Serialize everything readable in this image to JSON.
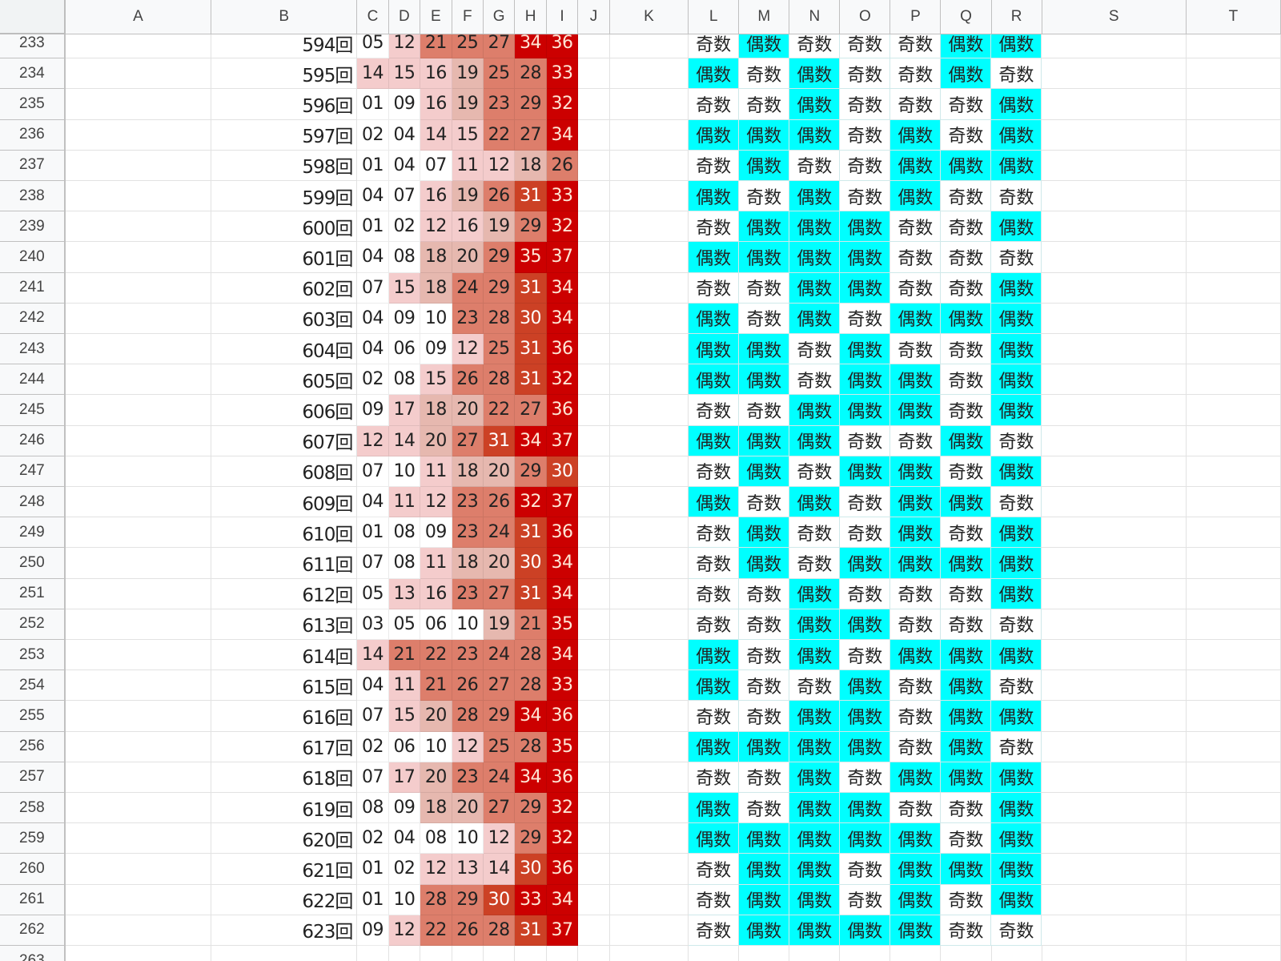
{
  "columns": [
    "",
    "A",
    "B",
    "C",
    "D",
    "E",
    "F",
    "G",
    "H",
    "I",
    "J",
    "K",
    "L",
    "M",
    "N",
    "O",
    "P",
    "Q",
    "R",
    "S",
    "T"
  ],
  "parity_labels": {
    "odd": "奇数",
    "even": "偶数"
  },
  "colors": {
    "even_fill": "#00ffff",
    "odd_fill": "#ffffff",
    "scale": [
      "#ffffff",
      "#f4cccc",
      "#e6b8af",
      "#dd7e6b",
      "#cc4125",
      "#cc0000"
    ]
  },
  "rows": [
    {
      "row": "233",
      "draw": "594回",
      "nums": [
        "05",
        "12",
        "21",
        "25",
        "27",
        "34",
        "36"
      ]
    },
    {
      "row": "234",
      "draw": "595回",
      "nums": [
        "14",
        "15",
        "16",
        "19",
        "25",
        "28",
        "33"
      ]
    },
    {
      "row": "235",
      "draw": "596回",
      "nums": [
        "01",
        "09",
        "16",
        "19",
        "23",
        "29",
        "32"
      ]
    },
    {
      "row": "236",
      "draw": "597回",
      "nums": [
        "02",
        "04",
        "14",
        "15",
        "22",
        "27",
        "34"
      ]
    },
    {
      "row": "237",
      "draw": "598回",
      "nums": [
        "01",
        "04",
        "07",
        "11",
        "12",
        "18",
        "26"
      ]
    },
    {
      "row": "238",
      "draw": "599回",
      "nums": [
        "04",
        "07",
        "16",
        "19",
        "26",
        "31",
        "33"
      ]
    },
    {
      "row": "239",
      "draw": "600回",
      "nums": [
        "01",
        "02",
        "12",
        "16",
        "19",
        "29",
        "32"
      ]
    },
    {
      "row": "240",
      "draw": "601回",
      "nums": [
        "04",
        "08",
        "18",
        "20",
        "29",
        "35",
        "37"
      ]
    },
    {
      "row": "241",
      "draw": "602回",
      "nums": [
        "07",
        "15",
        "18",
        "24",
        "29",
        "31",
        "34"
      ]
    },
    {
      "row": "242",
      "draw": "603回",
      "nums": [
        "04",
        "09",
        "10",
        "23",
        "28",
        "30",
        "34"
      ]
    },
    {
      "row": "243",
      "draw": "604回",
      "nums": [
        "04",
        "06",
        "09",
        "12",
        "25",
        "31",
        "36"
      ]
    },
    {
      "row": "244",
      "draw": "605回",
      "nums": [
        "02",
        "08",
        "15",
        "26",
        "28",
        "31",
        "32"
      ]
    },
    {
      "row": "245",
      "draw": "606回",
      "nums": [
        "09",
        "17",
        "18",
        "20",
        "22",
        "27",
        "36"
      ]
    },
    {
      "row": "246",
      "draw": "607回",
      "nums": [
        "12",
        "14",
        "20",
        "27",
        "31",
        "34",
        "37"
      ]
    },
    {
      "row": "247",
      "draw": "608回",
      "nums": [
        "07",
        "10",
        "11",
        "18",
        "20",
        "29",
        "30"
      ]
    },
    {
      "row": "248",
      "draw": "609回",
      "nums": [
        "04",
        "11",
        "12",
        "23",
        "26",
        "32",
        "37"
      ]
    },
    {
      "row": "249",
      "draw": "610回",
      "nums": [
        "01",
        "08",
        "09",
        "23",
        "24",
        "31",
        "36"
      ]
    },
    {
      "row": "250",
      "draw": "611回",
      "nums": [
        "07",
        "08",
        "11",
        "18",
        "20",
        "30",
        "34"
      ]
    },
    {
      "row": "251",
      "draw": "612回",
      "nums": [
        "05",
        "13",
        "16",
        "23",
        "27",
        "31",
        "34"
      ]
    },
    {
      "row": "252",
      "draw": "613回",
      "nums": [
        "03",
        "05",
        "06",
        "10",
        "19",
        "21",
        "35"
      ]
    },
    {
      "row": "253",
      "draw": "614回",
      "nums": [
        "14",
        "21",
        "22",
        "23",
        "24",
        "28",
        "34"
      ]
    },
    {
      "row": "254",
      "draw": "615回",
      "nums": [
        "04",
        "11",
        "21",
        "26",
        "27",
        "28",
        "33"
      ]
    },
    {
      "row": "255",
      "draw": "616回",
      "nums": [
        "07",
        "15",
        "20",
        "28",
        "29",
        "34",
        "36"
      ]
    },
    {
      "row": "256",
      "draw": "617回",
      "nums": [
        "02",
        "06",
        "10",
        "12",
        "25",
        "28",
        "35"
      ]
    },
    {
      "row": "257",
      "draw": "618回",
      "nums": [
        "07",
        "17",
        "20",
        "23",
        "24",
        "34",
        "36"
      ]
    },
    {
      "row": "258",
      "draw": "619回",
      "nums": [
        "08",
        "09",
        "18",
        "20",
        "27",
        "29",
        "32"
      ]
    },
    {
      "row": "259",
      "draw": "620回",
      "nums": [
        "02",
        "04",
        "08",
        "10",
        "12",
        "29",
        "32"
      ]
    },
    {
      "row": "260",
      "draw": "621回",
      "nums": [
        "01",
        "02",
        "12",
        "13",
        "14",
        "30",
        "36"
      ]
    },
    {
      "row": "261",
      "draw": "622回",
      "nums": [
        "01",
        "10",
        "28",
        "29",
        "30",
        "33",
        "34"
      ]
    },
    {
      "row": "262",
      "draw": "623回",
      "nums": [
        "09",
        "12",
        "22",
        "26",
        "28",
        "31",
        "37"
      ]
    }
  ],
  "trailing_row": "263"
}
